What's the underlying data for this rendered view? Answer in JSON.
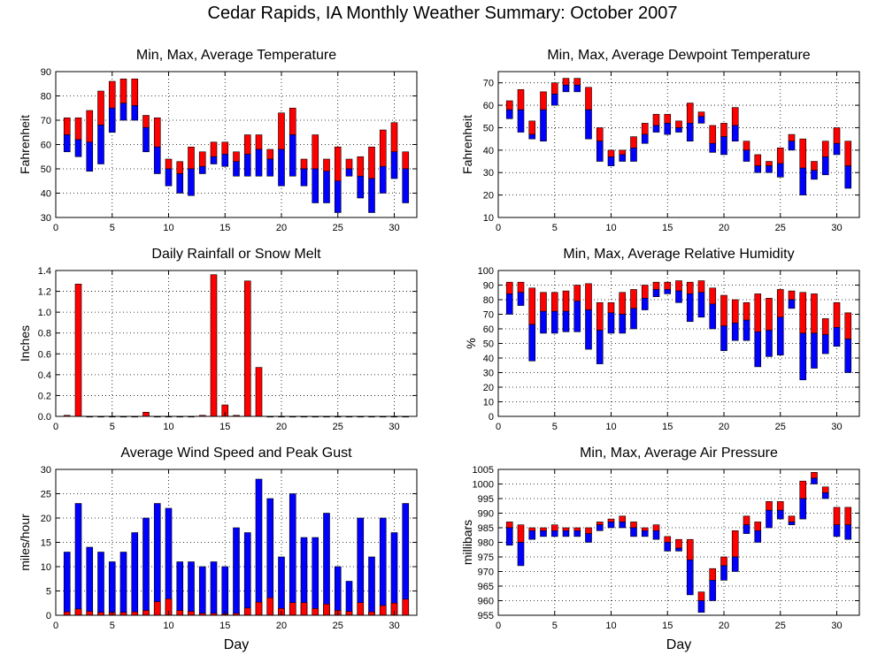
{
  "page_title": "Cedar Rapids, IA Monthly Weather Summary: October 2007",
  "colors": {
    "max_bar": "#ff0000",
    "min_bar": "#0000ff",
    "frame": "#000000",
    "grid": "#000000"
  },
  "chart_data": [
    {
      "id": "temperature",
      "type": "bar",
      "style": "floating-min-avg-max",
      "title": "Min, Max, Average Temperature",
      "xlabel": "",
      "ylabel": "Fahrenheit",
      "xlim": [
        0,
        32
      ],
      "ylim": [
        30,
        90
      ],
      "xticks": [
        0,
        5,
        10,
        15,
        20,
        25,
        30
      ],
      "yticks": [
        30,
        40,
        50,
        60,
        70,
        80,
        90
      ],
      "grid": true,
      "x": [
        1,
        2,
        3,
        4,
        5,
        6,
        7,
        8,
        9,
        10,
        11,
        12,
        13,
        14,
        15,
        16,
        17,
        18,
        19,
        20,
        21,
        22,
        23,
        24,
        25,
        26,
        27,
        28,
        29,
        30,
        31
      ],
      "min": [
        57,
        55,
        49,
        52,
        65,
        70,
        70,
        57,
        48,
        43,
        40,
        39,
        48,
        52,
        51,
        47,
        47,
        47,
        47,
        43,
        47,
        43,
        36,
        36,
        32,
        47,
        38,
        32,
        40,
        46,
        36
      ],
      "avg": [
        64,
        62,
        61,
        68,
        75,
        77,
        76,
        67,
        59,
        50,
        48,
        50,
        51,
        55,
        56,
        53,
        56,
        58,
        54,
        58,
        64,
        50,
        50,
        49,
        45,
        50,
        47,
        46,
        51,
        57,
        50
      ],
      "max": [
        71,
        71,
        74,
        82,
        86,
        87,
        87,
        72,
        71,
        54,
        53,
        59,
        57,
        61,
        61,
        57,
        64,
        64,
        58,
        73,
        75,
        54,
        64,
        54,
        59,
        54,
        55,
        59,
        66,
        69,
        57
      ]
    },
    {
      "id": "dewpoint",
      "type": "bar",
      "style": "floating-min-avg-max",
      "title": "Min, Max, Average Dewpoint Temperature",
      "xlabel": "",
      "ylabel": "Fahrenheit",
      "xlim": [
        0,
        32
      ],
      "ylim": [
        10,
        75
      ],
      "xticks": [
        0,
        5,
        10,
        15,
        20,
        25,
        30
      ],
      "yticks": [
        10,
        20,
        30,
        40,
        50,
        60,
        70
      ],
      "grid": true,
      "x": [
        1,
        2,
        3,
        4,
        5,
        6,
        7,
        8,
        9,
        10,
        11,
        12,
        13,
        14,
        15,
        16,
        17,
        18,
        19,
        20,
        21,
        22,
        23,
        24,
        25,
        26,
        27,
        28,
        29,
        30,
        31
      ],
      "min": [
        54,
        48,
        45,
        44,
        60,
        66,
        66,
        45,
        35,
        33,
        35,
        35,
        43,
        48,
        47,
        48,
        44,
        52,
        39,
        38,
        44,
        35,
        30,
        30,
        28,
        40,
        20,
        27,
        29,
        38,
        23
      ],
      "avg": [
        58,
        58,
        47,
        58,
        65,
        69,
        69,
        58,
        44,
        37,
        38,
        41,
        47,
        51,
        52,
        50,
        52,
        55,
        43,
        46,
        51,
        40,
        33,
        33,
        34,
        44,
        32,
        31,
        37,
        43,
        33
      ],
      "max": [
        62,
        67,
        53,
        66,
        70,
        72,
        72,
        68,
        50,
        40,
        40,
        46,
        52,
        56,
        56,
        53,
        61,
        57,
        51,
        52,
        59,
        44,
        38,
        35,
        41,
        47,
        45,
        35,
        44,
        50,
        44
      ]
    },
    {
      "id": "rainfall",
      "type": "bar",
      "style": "simple",
      "title": "Daily Rainfall or Snow Melt",
      "xlabel": "",
      "ylabel": "Inches",
      "xlim": [
        0,
        32
      ],
      "ylim": [
        0,
        1.4
      ],
      "xticks": [
        0,
        5,
        10,
        15,
        20,
        25,
        30
      ],
      "yticks": [
        0.0,
        0.2,
        0.4,
        0.6,
        0.8,
        1.0,
        1.2,
        1.4
      ],
      "ytick_labels": [
        "0.0",
        "0.2",
        "0.4",
        "0.6",
        "0.8",
        "1.0",
        "1.2",
        "1.4"
      ],
      "grid": true,
      "x": [
        1,
        2,
        3,
        4,
        5,
        6,
        7,
        8,
        9,
        10,
        11,
        12,
        13,
        14,
        15,
        16,
        17,
        18,
        19,
        20,
        21,
        22,
        23,
        24,
        25,
        26,
        27,
        28,
        29,
        30,
        31
      ],
      "values": [
        0.01,
        1.27,
        0,
        0,
        0,
        0,
        0,
        0.04,
        0,
        0,
        0,
        0,
        0.01,
        1.36,
        0.11,
        0.01,
        1.3,
        0.47,
        0,
        0,
        0,
        0,
        0,
        0,
        0,
        0,
        0,
        0,
        0,
        0,
        0
      ]
    },
    {
      "id": "humidity",
      "type": "bar",
      "style": "floating-min-avg-max",
      "title": "Min, Max, Average Relative Humidity",
      "xlabel": "",
      "ylabel": "%",
      "xlim": [
        0,
        32
      ],
      "ylim": [
        0,
        100
      ],
      "xticks": [
        0,
        5,
        10,
        15,
        20,
        25,
        30
      ],
      "yticks": [
        0,
        10,
        20,
        30,
        40,
        50,
        60,
        70,
        80,
        90,
        100
      ],
      "grid": true,
      "x": [
        1,
        2,
        3,
        4,
        5,
        6,
        7,
        8,
        9,
        10,
        11,
        12,
        13,
        14,
        15,
        16,
        17,
        18,
        19,
        20,
        21,
        22,
        23,
        24,
        25,
        26,
        27,
        28,
        29,
        30,
        31
      ],
      "min": [
        70,
        76,
        38,
        57,
        57,
        58,
        58,
        46,
        36,
        57,
        57,
        60,
        73,
        82,
        84,
        78,
        65,
        68,
        60,
        45,
        52,
        52,
        34,
        41,
        42,
        74,
        25,
        33,
        43,
        48,
        30
      ],
      "avg": [
        84,
        85,
        63,
        72,
        72,
        72,
        79,
        73,
        59,
        71,
        70,
        74,
        81,
        87,
        87,
        86,
        84,
        85,
        77,
        62,
        64,
        66,
        58,
        59,
        68,
        80,
        57,
        57,
        56,
        61,
        53
      ],
      "max": [
        92,
        92,
        88,
        85,
        85,
        86,
        90,
        91,
        78,
        78,
        85,
        87,
        90,
        92,
        92,
        93,
        92,
        93,
        88,
        83,
        80,
        78,
        84,
        81,
        87,
        86,
        85,
        84,
        67,
        78,
        71
      ]
    },
    {
      "id": "wind",
      "type": "bar",
      "style": "overlay",
      "title": "Average Wind Speed and Peak Gust",
      "xlabel": "Day",
      "ylabel": "miles/hour",
      "xlim": [
        0,
        32
      ],
      "ylim": [
        0,
        30
      ],
      "xticks": [
        0,
        5,
        10,
        15,
        20,
        25,
        30
      ],
      "yticks": [
        0,
        5,
        10,
        15,
        20,
        25,
        30
      ],
      "grid": true,
      "x": [
        1,
        2,
        3,
        4,
        5,
        6,
        7,
        8,
        9,
        10,
        11,
        12,
        13,
        14,
        15,
        16,
        17,
        18,
        19,
        20,
        21,
        22,
        23,
        24,
        25,
        26,
        27,
        28,
        29,
        30,
        31
      ],
      "series": [
        {
          "name": "peak_gust",
          "values": [
            13,
            23,
            14,
            13,
            11,
            13,
            17,
            20,
            23,
            22,
            11,
            11,
            10,
            11,
            10,
            18,
            17,
            28,
            24,
            12,
            25,
            16,
            16,
            21,
            10,
            7,
            20,
            12,
            20,
            17,
            23
          ]
        },
        {
          "name": "avg_speed",
          "values": [
            0.7,
            1.3,
            0.8,
            0.6,
            0.6,
            0.6,
            0.7,
            1.0,
            2.8,
            3.4,
            1.0,
            0.8,
            0.4,
            0.4,
            0.3,
            0.4,
            1.5,
            2.7,
            3.6,
            1.4,
            2.6,
            2.6,
            1.4,
            2.3,
            1.0,
            0.8,
            2.6,
            0.7,
            2.0,
            2.5,
            3.3
          ]
        }
      ]
    },
    {
      "id": "pressure",
      "type": "bar",
      "style": "floating-min-avg-max",
      "title": "Min, Max, Average Air Pressure",
      "xlabel": "Day",
      "ylabel": "millibars",
      "xlim": [
        0,
        32
      ],
      "ylim": [
        955,
        1005
      ],
      "xticks": [
        0,
        5,
        10,
        15,
        20,
        25,
        30
      ],
      "yticks": [
        955,
        960,
        965,
        970,
        975,
        980,
        985,
        990,
        995,
        1000,
        1005
      ],
      "grid": true,
      "x": [
        1,
        2,
        3,
        4,
        5,
        6,
        7,
        8,
        9,
        10,
        11,
        12,
        13,
        14,
        15,
        16,
        17,
        18,
        19,
        20,
        21,
        22,
        23,
        24,
        25,
        26,
        27,
        28,
        29,
        30,
        31
      ],
      "min": [
        979,
        972,
        981,
        982,
        982,
        982,
        982,
        980,
        984,
        985,
        985,
        982,
        982,
        981,
        977,
        977,
        962,
        956,
        960,
        967,
        970,
        983,
        980,
        985,
        988,
        986,
        988,
        1000,
        995,
        982,
        981
      ],
      "avg": [
        985,
        980,
        984,
        984,
        984,
        984,
        984,
        983,
        986,
        987,
        987,
        985,
        984,
        984,
        980,
        978,
        974,
        960,
        967,
        972,
        975,
        986,
        984,
        991,
        991,
        987,
        995,
        1002,
        997,
        986,
        986
      ],
      "max": [
        987,
        986,
        985,
        985,
        986,
        985,
        985,
        985,
        987,
        988,
        989,
        987,
        985,
        986,
        982,
        981,
        981,
        963,
        971,
        975,
        984,
        989,
        987,
        994,
        994,
        989,
        1001,
        1004,
        999,
        992,
        992
      ]
    }
  ]
}
